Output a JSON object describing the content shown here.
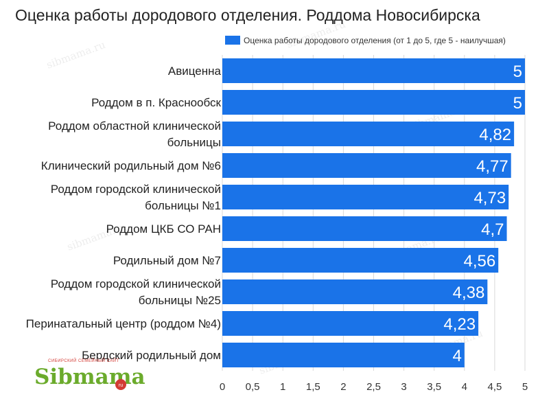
{
  "chart_data": {
    "type": "bar",
    "orientation": "horizontal",
    "title": "Оценка работы дородового отделения. Роддома Новосибирска",
    "legend": {
      "position": "top-right",
      "entries": [
        "Оценка работы дородового отделения (от 1 до 5, где 5 - наилучшая)"
      ]
    },
    "categories": [
      [
        "Авиценна"
      ],
      [
        "Роддом в п. Краснообск"
      ],
      [
        "Роддом областной клинической",
        "больницы"
      ],
      [
        "Клинический родильный дом №6"
      ],
      [
        "Роддом городской клинической",
        "больницы №1"
      ],
      [
        "Роддом ЦКБ СО РАН"
      ],
      [
        "Родильный дом №7"
      ],
      [
        "Роддом городской клинической",
        "больницы №25"
      ],
      [
        "Перинатальный центр (роддом №4)"
      ],
      [
        "Бердский родильный дом"
      ]
    ],
    "series": [
      {
        "name": "Оценка работы дородового отделения (от 1 до 5, где 5 - наилучшая)",
        "values": [
          5,
          5,
          4.82,
          4.77,
          4.73,
          4.7,
          4.56,
          4.38,
          4.23,
          4
        ],
        "value_labels": [
          "5",
          "5",
          "4,82",
          "4,77",
          "4,73",
          "4,7",
          "4,56",
          "4,38",
          "4,23",
          "4"
        ]
      }
    ],
    "x_ticks": [
      0,
      0.5,
      1,
      1.5,
      2,
      2.5,
      3,
      3.5,
      4,
      4.5,
      5
    ],
    "x_tick_labels": [
      "0",
      "0,5",
      "1",
      "1,5",
      "2",
      "2,5",
      "3",
      "3,5",
      "4",
      "4,5",
      "5"
    ],
    "xlim": [
      0,
      5
    ],
    "grid": true
  },
  "colors": {
    "bar": "#1a73e8",
    "title": "#222222",
    "grid": "#d9d9d9",
    "logo_green": "#6bab2c",
    "logo_red": "#d33b34"
  },
  "logo": {
    "subtitle": "СИБИРСКИЙ СЕМЕЙНЫЙ САЙТ",
    "name": "Sibmama",
    "tld": "ru"
  },
  "watermark": "sibmama.ru"
}
